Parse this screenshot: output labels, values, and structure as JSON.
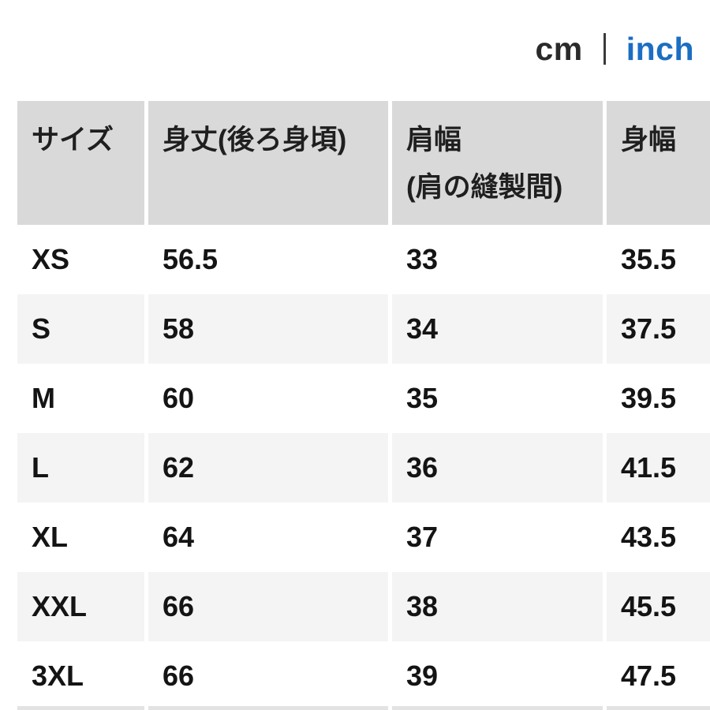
{
  "unit_toggle": {
    "cm_label": "cm",
    "inch_label": "inch",
    "active_unit": "cm",
    "inch_color": "#1b6ec2"
  },
  "colors": {
    "header_bg": "#d9d9d9",
    "alt_row_bg": "#f4f4f4",
    "text": "#1a1a1a"
  },
  "table": {
    "header": [
      {
        "label": "サイズ",
        "sublabel": ""
      },
      {
        "label": "身丈(後ろ身頃)",
        "sublabel": ""
      },
      {
        "label": "肩幅",
        "sublabel": "(肩の縫製間)"
      },
      {
        "label": "身幅",
        "sublabel": ""
      }
    ],
    "rows": [
      {
        "size": "XS",
        "length": "56.5",
        "shoulder": "33",
        "width": "35.5"
      },
      {
        "size": "S",
        "length": "58",
        "shoulder": "34",
        "width": "37.5"
      },
      {
        "size": "M",
        "length": "60",
        "shoulder": "35",
        "width": "39.5"
      },
      {
        "size": "L",
        "length": "62",
        "shoulder": "36",
        "width": "41.5"
      },
      {
        "size": "XL",
        "length": "64",
        "shoulder": "37",
        "width": "43.5"
      },
      {
        "size": "XXL",
        "length": "66",
        "shoulder": "38",
        "width": "45.5"
      },
      {
        "size": "3XL",
        "length": "66",
        "shoulder": "39",
        "width": "47.5"
      }
    ]
  }
}
